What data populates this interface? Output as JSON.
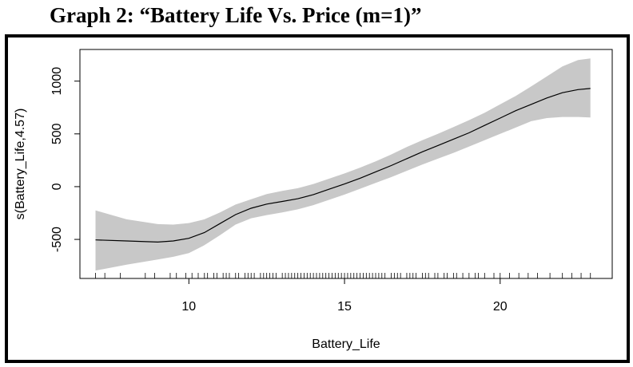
{
  "title": "Graph 2: “Battery Life Vs. Price (m=1)”",
  "chart_data": {
    "type": "line",
    "title": "",
    "xlabel": "Battery_Life",
    "ylabel": "s(Battery_Life,4.57)",
    "xlim": [
      6.5,
      23.6
    ],
    "ylim": [
      -870,
      1300
    ],
    "xticks": [
      10,
      15,
      20
    ],
    "yticks": [
      -500,
      0,
      500,
      1000
    ],
    "grid": false,
    "series": [
      {
        "x": [
          7.0,
          8.0,
          9.0,
          9.5,
          10.0,
          10.5,
          11.0,
          11.5,
          12.0,
          12.5,
          13.0,
          13.5,
          14.0,
          14.5,
          15.0,
          15.5,
          16.0,
          16.5,
          17.0,
          17.5,
          18.0,
          18.5,
          19.0,
          19.5,
          20.0,
          20.5,
          21.0,
          21.5,
          22.0,
          22.5,
          22.9
        ],
        "values": [
          -505,
          -515,
          -525,
          -515,
          -490,
          -435,
          -350,
          -265,
          -205,
          -165,
          -140,
          -115,
          -75,
          -25,
          25,
          80,
          140,
          200,
          265,
          330,
          390,
          450,
          510,
          580,
          650,
          720,
          780,
          840,
          890,
          920,
          930
        ],
        "lower": [
          -795,
          -740,
          -690,
          -665,
          -630,
          -555,
          -460,
          -360,
          -300,
          -270,
          -245,
          -215,
          -175,
          -125,
          -75,
          -20,
          35,
          90,
          150,
          210,
          265,
          320,
          380,
          440,
          500,
          560,
          620,
          650,
          660,
          660,
          655
        ],
        "upper": [
          -225,
          -310,
          -355,
          -360,
          -345,
          -310,
          -245,
          -170,
          -120,
          -70,
          -40,
          -15,
          25,
          75,
          125,
          180,
          240,
          305,
          375,
          440,
          500,
          565,
          630,
          700,
          780,
          860,
          950,
          1045,
          1140,
          1200,
          1215
        ]
      }
    ],
    "rug": [
      7.0,
      7.3,
      7.8,
      8.6,
      8.9,
      9.4,
      9.6,
      9.9,
      10.1,
      10.3,
      10.5,
      10.6,
      10.8,
      10.9,
      11.1,
      11.2,
      11.3,
      11.5,
      11.6,
      11.8,
      11.9,
      12.0,
      12.1,
      12.3,
      12.4,
      12.5,
      12.6,
      12.7,
      12.8,
      13.0,
      13.1,
      13.2,
      13.3,
      13.4,
      13.5,
      13.6,
      13.7,
      13.8,
      13.9,
      14.0,
      14.1,
      14.2,
      14.3,
      14.4,
      14.5,
      14.6,
      14.7,
      14.8,
      14.9,
      15.0,
      15.1,
      15.2,
      15.3,
      15.4,
      15.5,
      15.6,
      15.7,
      15.8,
      15.9,
      16.0,
      16.1,
      16.2,
      16.3,
      16.5,
      16.6,
      16.7,
      16.8,
      17.0,
      17.1,
      17.2,
      17.3,
      17.5,
      17.6,
      17.7,
      17.9,
      18.0,
      18.2,
      18.3,
      18.5,
      18.6,
      18.8,
      19.0,
      19.2,
      19.3,
      19.5,
      19.8,
      20.0,
      20.3,
      20.6,
      20.9,
      21.2,
      21.6,
      22.0,
      22.3,
      22.6,
      22.9
    ]
  }
}
